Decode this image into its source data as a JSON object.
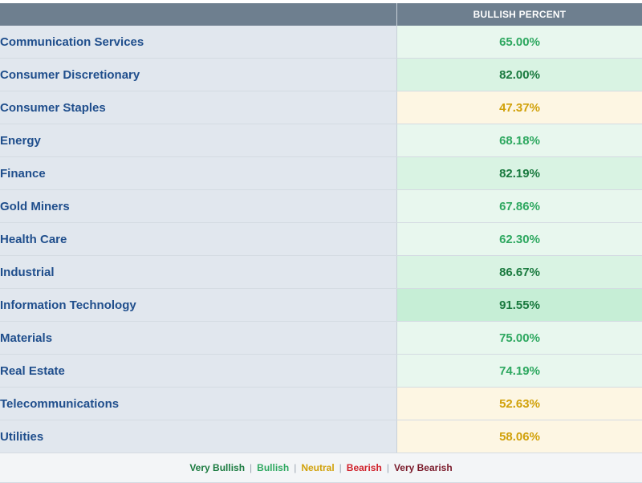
{
  "table": {
    "header": {
      "pct_label": "BULLISH PERCENT"
    },
    "rows": [
      {
        "sector": "Communication Services",
        "value": "65.00%",
        "level": "bullish"
      },
      {
        "sector": "Consumer Discretionary",
        "value": "82.00%",
        "level": "very-bullish"
      },
      {
        "sector": "Consumer Staples",
        "value": "47.37%",
        "level": "neutral"
      },
      {
        "sector": "Energy",
        "value": "68.18%",
        "level": "bullish"
      },
      {
        "sector": "Finance",
        "value": "82.19%",
        "level": "very-bullish"
      },
      {
        "sector": "Gold Miners",
        "value": "67.86%",
        "level": "bullish"
      },
      {
        "sector": "Health Care",
        "value": "62.30%",
        "level": "bullish"
      },
      {
        "sector": "Industrial",
        "value": "86.67%",
        "level": "very-bullish"
      },
      {
        "sector": "Information Technology",
        "value": "91.55%",
        "level": "very-bullish-strong"
      },
      {
        "sector": "Materials",
        "value": "75.00%",
        "level": "bullish"
      },
      {
        "sector": "Real Estate",
        "value": "74.19%",
        "level": "bullish"
      },
      {
        "sector": "Telecommunications",
        "value": "52.63%",
        "level": "neutral"
      },
      {
        "sector": "Utilities",
        "value": "58.06%",
        "level": "neutral"
      }
    ]
  },
  "legend": {
    "very_bullish": "Very Bullish",
    "bullish": "Bullish",
    "neutral": "Neutral",
    "bearish": "Bearish",
    "very_bearish": "Very Bearish",
    "separator": "|"
  },
  "colors": {
    "header_bg": "#6e7f8f",
    "sector_text": "#1f4e8c",
    "very_bullish": "#1a7a3f",
    "bullish": "#2ea860",
    "neutral": "#d1a10a",
    "bearish": "#d0202a",
    "very_bearish": "#7a1a2a"
  }
}
